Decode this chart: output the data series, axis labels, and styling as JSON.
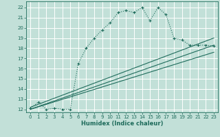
{
  "xlabel": "Humidex (Indice chaleur)",
  "xlim": [
    -0.5,
    23.5
  ],
  "ylim": [
    11.7,
    22.6
  ],
  "xticks": [
    0,
    1,
    2,
    3,
    4,
    5,
    6,
    7,
    8,
    9,
    10,
    11,
    12,
    13,
    14,
    15,
    16,
    17,
    18,
    19,
    20,
    21,
    22,
    23
  ],
  "yticks": [
    12,
    13,
    14,
    15,
    16,
    17,
    18,
    19,
    20,
    21,
    22
  ],
  "bg_color": "#c2e0d8",
  "grid_color": "#ffffff",
  "line_color": "#1e6b5b",
  "main_x": [
    0,
    1,
    2,
    3,
    4,
    5,
    6,
    7,
    8,
    9,
    10,
    11,
    12,
    13,
    14,
    15,
    16,
    17,
    18,
    19,
    20,
    21,
    22,
    23
  ],
  "main_y": [
    12.1,
    12.7,
    12.0,
    12.1,
    12.0,
    12.0,
    16.5,
    18.0,
    19.0,
    19.8,
    20.5,
    21.5,
    21.7,
    21.5,
    22.0,
    20.7,
    22.0,
    21.3,
    19.0,
    18.8,
    18.3,
    18.3,
    18.3,
    18.2
  ],
  "ref_line1_x": [
    0,
    23
  ],
  "ref_line1_y": [
    12.0,
    18.3
  ],
  "ref_line2_x": [
    0,
    23
  ],
  "ref_line2_y": [
    12.0,
    17.6
  ],
  "ref_line3_x": [
    0,
    23
  ],
  "ref_line3_y": [
    12.2,
    19.0
  ]
}
